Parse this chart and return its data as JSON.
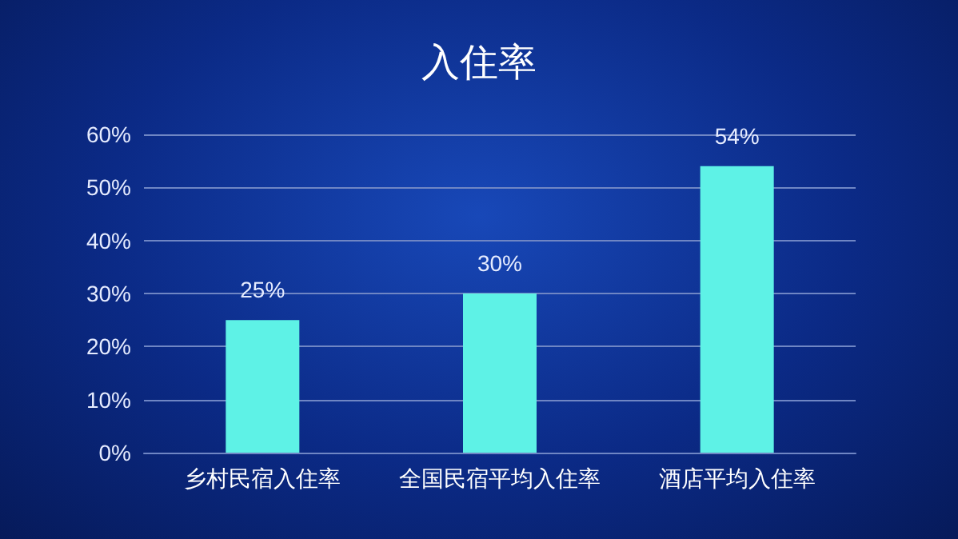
{
  "chart_data": {
    "type": "bar",
    "title": "入住率",
    "categories": [
      "乡村民宿入住率",
      "全国民宿平均入住率",
      "酒店平均入住率"
    ],
    "values": [
      25,
      30,
      54
    ],
    "color": "#5ef2e6",
    "value_labels": [
      "25%",
      "30%",
      "54%"
    ],
    "ylim": [
      0,
      60
    ],
    "yticks": [
      {
        "value": 0,
        "label": "0%"
      },
      {
        "value": 10,
        "label": "10%"
      },
      {
        "value": 20,
        "label": "20%"
      },
      {
        "value": 30,
        "label": "30%"
      },
      {
        "value": 40,
        "label": "40%"
      },
      {
        "value": 50,
        "label": "50%"
      },
      {
        "value": 60,
        "label": "60%"
      }
    ],
    "grid": "y"
  }
}
